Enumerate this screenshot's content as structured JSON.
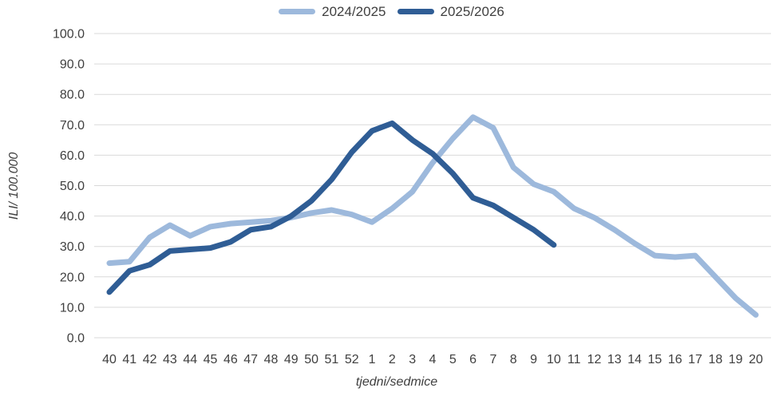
{
  "chart_data": {
    "type": "line",
    "title": "",
    "xlabel": "tjedni/sedmice",
    "ylabel": "ILI/ 100.000",
    "ylim": [
      0,
      100
    ],
    "ytick_step": 10,
    "ytick_decimals": 1,
    "grid": true,
    "gridline_color": "#D9D9D9",
    "text_color": "#3f3f3f",
    "legend_position": "top-center",
    "categories": [
      "40",
      "41",
      "42",
      "43",
      "44",
      "45",
      "46",
      "47",
      "48",
      "49",
      "50",
      "51",
      "52",
      "1",
      "2",
      "3",
      "4",
      "5",
      "6",
      "7",
      "8",
      "9",
      "10",
      "11",
      "12",
      "13",
      "14",
      "15",
      "16",
      "17",
      "18",
      "19",
      "20"
    ],
    "series": [
      {
        "name": "2024/2025",
        "color": "#9DB9DC",
        "values": [
          24.5,
          25,
          33,
          37,
          33.5,
          36.5,
          37.5,
          38,
          38.5,
          39.5,
          41,
          42,
          40.5,
          38,
          42.5,
          48,
          57.5,
          65.5,
          72.5,
          69,
          56,
          50.5,
          48,
          42.5,
          39.5,
          35.5,
          31,
          27,
          26.5,
          27,
          20,
          13,
          7.5
        ]
      },
      {
        "name": "2025/2026",
        "color": "#2F5D95",
        "values": [
          15,
          22,
          24,
          28.5,
          29,
          29.5,
          31.5,
          35.5,
          36.5,
          40,
          45,
          52,
          61,
          68,
          70.5,
          65,
          60.5,
          54,
          46,
          43.5,
          39.5,
          35.5,
          30.5
        ]
      }
    ]
  }
}
